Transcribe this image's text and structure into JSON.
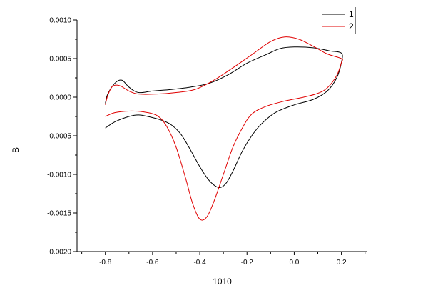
{
  "chart_data": {
    "type": "line",
    "title": "",
    "xlabel": "1010",
    "ylabel": "B",
    "xlim": [
      -0.92,
      0.31
    ],
    "ylim": [
      -0.002,
      0.001
    ],
    "x_ticks": [
      -0.8,
      -0.6,
      -0.4,
      -0.2,
      0.0,
      0.2
    ],
    "x_tick_labels": [
      "-0.8",
      "-0.6",
      "-0.4",
      "-0.2",
      "0.0",
      "0.2"
    ],
    "y_ticks": [
      0.001,
      0.0005,
      0.0,
      -0.0005,
      -0.001,
      -0.0015,
      -0.002
    ],
    "y_tick_labels": [
      "0.0010",
      "0.0005",
      "0.0000",
      "-0.0005",
      "-0.0010",
      "-0.0015",
      "-0.0020"
    ],
    "grid": false,
    "legend_position": "top-right",
    "series": [
      {
        "name": "1",
        "color": "#000000",
        "points": [
          [
            -0.8,
            -0.0004
          ],
          [
            -0.76,
            -0.00032
          ],
          [
            -0.7,
            -0.00025
          ],
          [
            -0.66,
            -0.00023
          ],
          [
            -0.62,
            -0.00025
          ],
          [
            -0.56,
            -0.0003
          ],
          [
            -0.52,
            -0.00036
          ],
          [
            -0.48,
            -0.00048
          ],
          [
            -0.44,
            -0.00068
          ],
          [
            -0.4,
            -0.0009
          ],
          [
            -0.36,
            -0.00108
          ],
          [
            -0.32,
            -0.00117
          ],
          [
            -0.29,
            -0.00112
          ],
          [
            -0.26,
            -0.00096
          ],
          [
            -0.22,
            -0.0007
          ],
          [
            -0.18,
            -0.0005
          ],
          [
            -0.14,
            -0.00035
          ],
          [
            -0.08,
            -0.0002
          ],
          [
            0.0,
            -0.0001
          ],
          [
            0.08,
            -3e-05
          ],
          [
            0.14,
            8e-05
          ],
          [
            0.18,
            0.00025
          ],
          [
            0.2,
            0.00045
          ],
          [
            0.2,
            0.00057
          ],
          [
            0.15,
            0.0006
          ],
          [
            0.08,
            0.00064
          ],
          [
            0.0,
            0.00065
          ],
          [
            -0.06,
            0.00063
          ],
          [
            -0.12,
            0.00055
          ],
          [
            -0.2,
            0.00044
          ],
          [
            -0.28,
            0.00029
          ],
          [
            -0.36,
            0.00018
          ],
          [
            -0.44,
            0.00013
          ],
          [
            -0.52,
            0.0001
          ],
          [
            -0.6,
            8e-05
          ],
          [
            -0.66,
            6e-05
          ],
          [
            -0.7,
            0.00013
          ],
          [
            -0.73,
            0.00022
          ],
          [
            -0.76,
            0.00018
          ],
          [
            -0.79,
            4e-05
          ],
          [
            -0.8,
            -8e-05
          ]
        ]
      },
      {
        "name": "2",
        "color": "#e00000",
        "points": [
          [
            -0.8,
            -0.00025
          ],
          [
            -0.76,
            -0.0002
          ],
          [
            -0.7,
            -0.00018
          ],
          [
            -0.64,
            -0.00019
          ],
          [
            -0.58,
            -0.00024
          ],
          [
            -0.54,
            -0.00038
          ],
          [
            -0.5,
            -0.00065
          ],
          [
            -0.46,
            -0.00105
          ],
          [
            -0.43,
            -0.00138
          ],
          [
            -0.4,
            -0.00158
          ],
          [
            -0.37,
            -0.00155
          ],
          [
            -0.34,
            -0.00135
          ],
          [
            -0.3,
            -0.001
          ],
          [
            -0.26,
            -0.00065
          ],
          [
            -0.22,
            -0.0004
          ],
          [
            -0.18,
            -0.00022
          ],
          [
            -0.12,
            -0.00012
          ],
          [
            -0.04,
            -5e-05
          ],
          [
            0.04,
            0.0
          ],
          [
            0.1,
            5e-05
          ],
          [
            0.14,
            0.00012
          ],
          [
            0.18,
            0.00028
          ],
          [
            0.2,
            0.00045
          ],
          [
            0.2,
            0.0005
          ],
          [
            0.14,
            0.00056
          ],
          [
            0.08,
            0.00066
          ],
          [
            0.02,
            0.00075
          ],
          [
            -0.04,
            0.00078
          ],
          [
            -0.1,
            0.00072
          ],
          [
            -0.18,
            0.00055
          ],
          [
            -0.26,
            0.00038
          ],
          [
            -0.34,
            0.00022
          ],
          [
            -0.42,
            0.0001
          ],
          [
            -0.5,
            6e-05
          ],
          [
            -0.58,
            4e-05
          ],
          [
            -0.66,
            4e-05
          ],
          [
            -0.7,
            8e-05
          ],
          [
            -0.74,
            0.00015
          ],
          [
            -0.77,
            0.00014
          ],
          [
            -0.79,
            2e-05
          ],
          [
            -0.8,
            -0.0001
          ]
        ]
      }
    ]
  }
}
